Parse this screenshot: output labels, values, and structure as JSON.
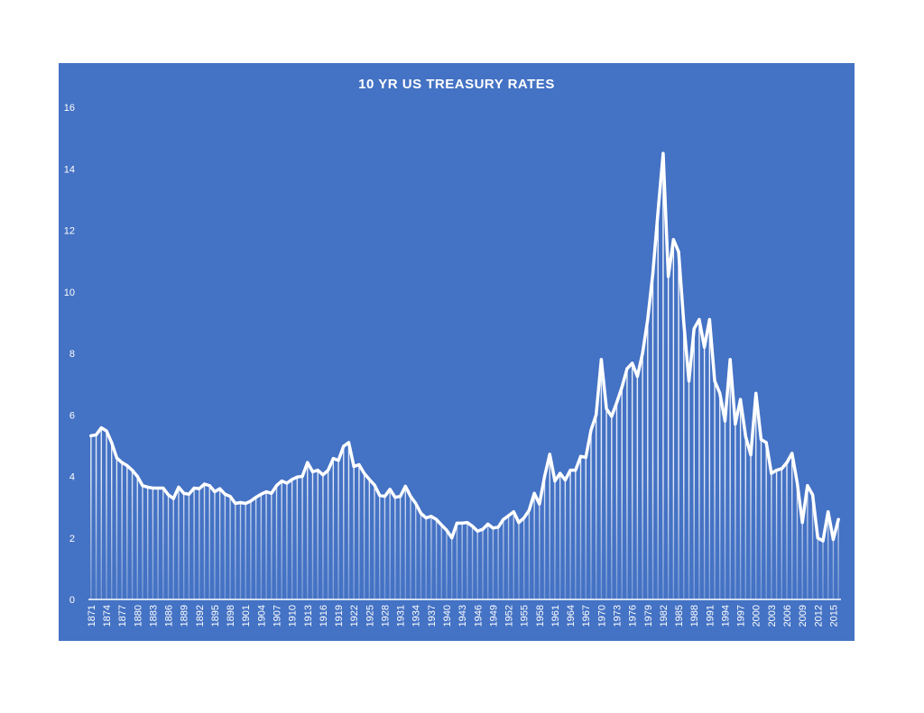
{
  "chart_data": {
    "type": "area",
    "title": "10 YR US TREASURY RATES",
    "xlabel": "",
    "ylabel": "",
    "ylim": [
      0,
      16
    ],
    "yticks": [
      0,
      2,
      4,
      6,
      8,
      10,
      12,
      14,
      16
    ],
    "xtick_labels": [
      "1871",
      "1874",
      "1877",
      "1880",
      "1883",
      "1886",
      "1889",
      "1892",
      "1895",
      "1898",
      "1901",
      "1904",
      "1907",
      "1910",
      "1913",
      "1916",
      "1919",
      "1922",
      "1925",
      "1928",
      "1931",
      "1934",
      "1937",
      "1940",
      "1943",
      "1946",
      "1949",
      "1952",
      "1955",
      "1958",
      "1961",
      "1964",
      "1967",
      "1970",
      "1973",
      "1976",
      "1979",
      "1982",
      "1985",
      "1988",
      "1991",
      "1994",
      "1997",
      "2000",
      "2003",
      "2006",
      "2009",
      "2012",
      "2015"
    ],
    "grid": false,
    "legend": "none",
    "colors": {
      "background": "#4472C4",
      "line": "#FFFFFF",
      "text": "#FFFFFF"
    },
    "x_start": 1871,
    "series": [
      {
        "values": [
          5.32,
          5.35,
          5.58,
          5.48,
          5.1,
          4.6,
          4.45,
          4.35,
          4.2,
          4.0,
          3.7,
          3.65,
          3.62,
          3.62,
          3.62,
          3.4,
          3.28,
          3.65,
          3.45,
          3.42,
          3.62,
          3.6,
          3.75,
          3.7,
          3.5,
          3.6,
          3.42,
          3.35,
          3.12,
          3.15,
          3.12,
          3.2,
          3.32,
          3.42,
          3.5,
          3.45,
          3.7,
          3.85,
          3.78,
          3.9,
          3.98,
          4.0,
          4.45,
          4.15,
          4.2,
          4.05,
          4.2,
          4.58,
          4.52,
          4.98,
          5.1,
          4.32,
          4.38,
          4.1,
          3.9,
          3.72,
          3.38,
          3.35,
          3.58,
          3.32,
          3.35,
          3.68,
          3.35,
          3.12,
          2.8,
          2.65,
          2.7,
          2.6,
          2.42,
          2.25,
          2.0,
          2.48,
          2.48,
          2.5,
          2.38,
          2.22,
          2.28,
          2.45,
          2.32,
          2.35,
          2.6,
          2.72,
          2.85,
          2.5,
          2.65,
          2.9,
          3.45,
          3.1,
          4.0,
          4.72,
          3.85,
          4.1,
          3.88,
          4.2,
          4.2,
          4.65,
          4.62,
          5.5,
          6.0,
          7.8,
          6.2,
          5.95,
          6.4,
          6.9,
          7.5,
          7.68,
          7.25,
          8.0,
          9.1,
          10.6,
          12.6,
          14.5,
          10.5,
          11.7,
          11.3,
          9.0,
          7.1,
          8.8,
          9.1,
          8.2,
          9.1,
          7.1,
          6.7,
          5.8,
          7.8,
          5.7,
          6.5,
          5.3,
          4.7,
          6.7,
          5.2,
          5.1,
          4.1,
          4.2,
          4.25,
          4.45,
          4.75,
          3.8,
          2.5,
          3.7,
          3.4,
          2.0,
          1.9,
          2.85,
          1.95,
          2.6
        ]
      }
    ]
  }
}
